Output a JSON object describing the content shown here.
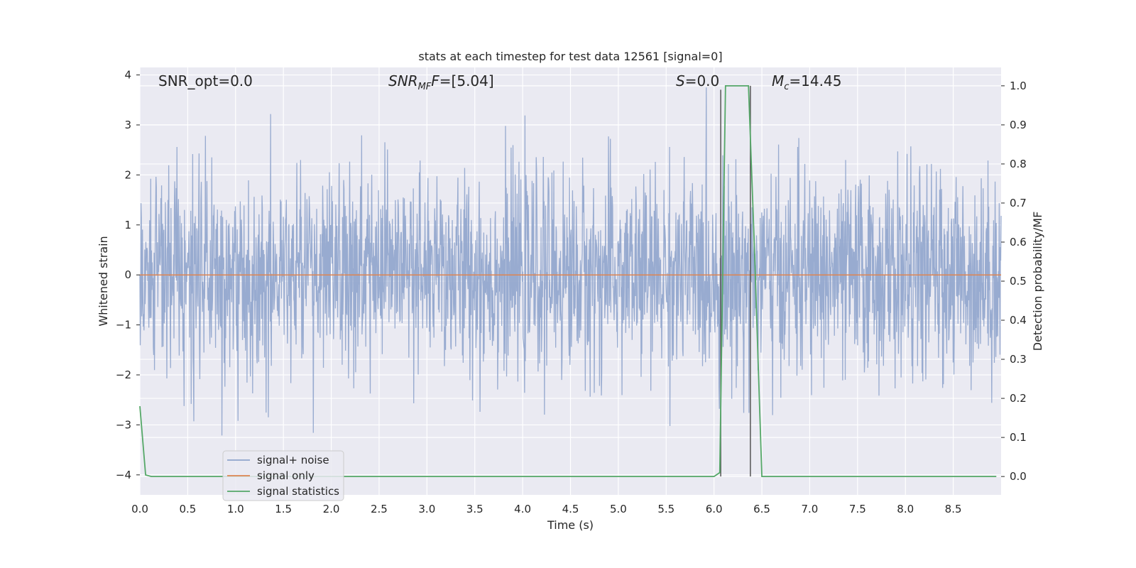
{
  "chart_data": {
    "type": "line",
    "title": "stats at each timestep for test data 12561 [signal=0]",
    "xlabel": "Time (s)",
    "ylabel": "Whitened strain",
    "y2label": "Detection probability/MF",
    "xlim": [
      0,
      9.0
    ],
    "ylim": [
      -4.4,
      4.15
    ],
    "y2lim": [
      -0.047,
      1.047
    ],
    "xticks": [
      "0.0",
      "0.5",
      "1.0",
      "1.5",
      "2.0",
      "2.5",
      "3.0",
      "3.5",
      "4.0",
      "4.5",
      "5.0",
      "5.5",
      "6.0",
      "6.5",
      "7.0",
      "7.5",
      "8.0",
      "8.5"
    ],
    "yticks": [
      "4",
      "3",
      "2",
      "1",
      "0",
      "−1",
      "−2",
      "−3",
      "−4"
    ],
    "y2ticks": [
      "1.0",
      "0.9",
      "0.8",
      "0.7",
      "0.6",
      "0.5",
      "0.4",
      "0.3",
      "0.2",
      "0.1",
      "0.0"
    ],
    "grid": true,
    "legend_position": "lower-left",
    "annotations": {
      "snr_opt": "SNR_opt=0.0",
      "snr_mf_main": "SNR",
      "snr_mf_sub": "MF",
      "snr_mf_value": "=[5.04]",
      "s_main": "S",
      "s_value": "=0.0",
      "mc_main": "M",
      "mc_sub": "c",
      "mc_value": "=14.45"
    },
    "series": [
      {
        "name": "signal+ noise",
        "axis": "left",
        "color": "#8fa4cc",
        "description_level": "whitened noise, amplitude within about ±2 with peaks near ±3.7",
        "amplitude_range": [
          -3.8,
          3.75
        ]
      },
      {
        "name": "signal only",
        "axis": "left",
        "color": "#dd8452",
        "x": [
          0,
          9.0
        ],
        "y": [
          0,
          0
        ]
      },
      {
        "name": "signal statistics",
        "axis": "right",
        "color": "#55a868",
        "x": [
          0.0,
          0.06,
          0.12,
          6.0,
          6.06,
          6.12,
          6.36,
          6.42,
          6.5,
          8.95
        ],
        "y": [
          0.18,
          0.004,
          0.0,
          0.0,
          0.01,
          1.0,
          1.0,
          0.6,
          0.0,
          0.0
        ]
      }
    ],
    "vlines": [
      {
        "x": 6.07,
        "y2_range": [
          0.0,
          0.99
        ],
        "color": "#555555"
      },
      {
        "x": 6.38,
        "y2_range": [
          0.0,
          1.0
        ],
        "color": "#555555"
      }
    ]
  }
}
